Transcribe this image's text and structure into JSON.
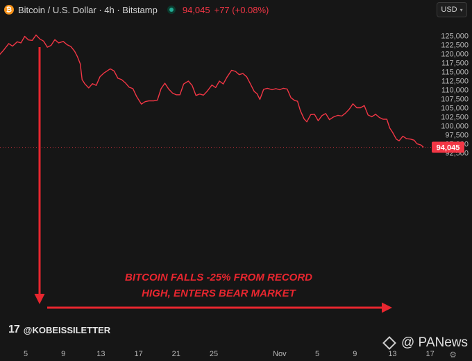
{
  "header": {
    "symbol_title": "Bitcoin / U.S. Dollar · 4h · Bitstamp",
    "last_price": "94,045",
    "change": "+77 (+0.08%)",
    "currency": "USD"
  },
  "annotation": {
    "line1": "BITCOIN FALLS -25% FROM RECORD",
    "line2": "HIGH, ENTERS BEAR MARKET"
  },
  "branding": {
    "logo_text": "17",
    "handle": "@KOBEISSILETTER",
    "watermark": "@ PANews"
  },
  "colors": {
    "line": "#f23645",
    "annotation": "#e8262f",
    "background": "#161616",
    "price_tag": "#f23645"
  },
  "icons": [
    "bitcoin-icon",
    "live-status-icon",
    "chevron-down-icon",
    "tradingview-logo",
    "binance-diamond-icon",
    "gear-icon"
  ],
  "chart_data": {
    "type": "line",
    "title": "Bitcoin / U.S. Dollar · 4h · Bitstamp",
    "ylim": [
      92000,
      127200
    ],
    "xlim": [
      0,
      46
    ],
    "y_ticks": [
      92500,
      95000,
      97500,
      100000,
      102500,
      105000,
      107500,
      110000,
      112500,
      115000,
      117500,
      120000,
      122500,
      125000
    ],
    "y_tick_labels": [
      "92,500",
      "95,000",
      "97,500",
      "100,000",
      "102,500",
      "105,000",
      "107,500",
      "110,000",
      "112,500",
      "115,000",
      "117,500",
      "120,000",
      "122,500",
      "125,000"
    ],
    "x_ticks": [
      3,
      7,
      11,
      15,
      19,
      23,
      30,
      34,
      38,
      42,
      46
    ],
    "x_tick_labels": [
      "5",
      "9",
      "13",
      "17",
      "21",
      "25",
      "Nov",
      "5",
      "9",
      "13",
      "17"
    ],
    "last_value": 94045,
    "last_value_label": "94,045",
    "series": [
      {
        "values": [
          [
            0,
            119100
          ],
          [
            0.6,
            120800
          ],
          [
            1.2,
            122800
          ],
          [
            1.6,
            122100
          ],
          [
            2.1,
            123300
          ],
          [
            2.5,
            123000
          ],
          [
            2.9,
            124800
          ],
          [
            3.3,
            123800
          ],
          [
            3.7,
            123700
          ],
          [
            4.1,
            125200
          ],
          [
            4.5,
            124100
          ],
          [
            4.9,
            123500
          ],
          [
            5.3,
            121800
          ],
          [
            5.7,
            122300
          ],
          [
            6.1,
            123900
          ],
          [
            6.5,
            123000
          ],
          [
            7.0,
            123400
          ],
          [
            7.4,
            122500
          ],
          [
            7.8,
            122000
          ],
          [
            8.2,
            120700
          ],
          [
            8.5,
            119200
          ],
          [
            8.8,
            117200
          ],
          [
            9.0,
            112800
          ],
          [
            9.3,
            111600
          ],
          [
            9.7,
            110500
          ],
          [
            10.1,
            111700
          ],
          [
            10.5,
            111200
          ],
          [
            10.9,
            113600
          ],
          [
            11.3,
            114600
          ],
          [
            11.7,
            115300
          ],
          [
            12.0,
            115800
          ],
          [
            12.4,
            115200
          ],
          [
            12.8,
            113200
          ],
          [
            13.2,
            112800
          ],
          [
            13.6,
            111900
          ],
          [
            14.0,
            110700
          ],
          [
            14.4,
            110300
          ],
          [
            14.8,
            108100
          ],
          [
            15.3,
            106000
          ],
          [
            15.7,
            106700
          ],
          [
            16.1,
            106900
          ],
          [
            16.6,
            106900
          ],
          [
            17.0,
            107100
          ],
          [
            17.4,
            110300
          ],
          [
            17.8,
            111800
          ],
          [
            18.2,
            110200
          ],
          [
            18.6,
            109100
          ],
          [
            19.0,
            108600
          ],
          [
            19.4,
            108600
          ],
          [
            19.8,
            111600
          ],
          [
            20.3,
            112400
          ],
          [
            20.7,
            111200
          ],
          [
            21.1,
            108400
          ],
          [
            21.5,
            108800
          ],
          [
            21.9,
            108500
          ],
          [
            22.3,
            109600
          ],
          [
            22.8,
            111300
          ],
          [
            23.2,
            110600
          ],
          [
            23.6,
            112400
          ],
          [
            24.0,
            111600
          ],
          [
            24.4,
            113500
          ],
          [
            24.9,
            115400
          ],
          [
            25.3,
            115100
          ],
          [
            25.7,
            114200
          ],
          [
            26.1,
            114500
          ],
          [
            26.5,
            113600
          ],
          [
            26.9,
            111600
          ],
          [
            27.3,
            109500
          ],
          [
            27.6,
            108900
          ],
          [
            27.9,
            107300
          ],
          [
            28.3,
            110100
          ],
          [
            28.7,
            110400
          ],
          [
            29.2,
            110000
          ],
          [
            29.6,
            110300
          ],
          [
            30.0,
            110000
          ],
          [
            30.4,
            110400
          ],
          [
            30.8,
            110200
          ],
          [
            31.2,
            107800
          ],
          [
            31.6,
            107000
          ],
          [
            31.9,
            106800
          ],
          [
            32.2,
            104200
          ],
          [
            32.6,
            101900
          ],
          [
            32.9,
            101100
          ],
          [
            33.3,
            103100
          ],
          [
            33.7,
            103200
          ],
          [
            34.1,
            101400
          ],
          [
            34.5,
            102800
          ],
          [
            34.9,
            103400
          ],
          [
            35.3,
            101700
          ],
          [
            35.7,
            102400
          ],
          [
            36.2,
            102900
          ],
          [
            36.6,
            102700
          ],
          [
            37.0,
            103500
          ],
          [
            37.4,
            104600
          ],
          [
            37.8,
            106100
          ],
          [
            38.2,
            105000
          ],
          [
            38.6,
            105000
          ],
          [
            39.0,
            105600
          ],
          [
            39.4,
            103000
          ],
          [
            39.8,
            102500
          ],
          [
            40.2,
            103200
          ],
          [
            40.6,
            102300
          ],
          [
            41.0,
            101800
          ],
          [
            41.4,
            101800
          ],
          [
            41.7,
            99400
          ],
          [
            42.0,
            98200
          ],
          [
            42.4,
            96300
          ],
          [
            42.7,
            95800
          ],
          [
            43.1,
            97100
          ],
          [
            43.5,
            96400
          ],
          [
            43.9,
            96300
          ],
          [
            44.3,
            96000
          ],
          [
            44.6,
            95000
          ],
          [
            45.0,
            94700
          ],
          [
            45.3,
            94045
          ]
        ]
      }
    ]
  }
}
